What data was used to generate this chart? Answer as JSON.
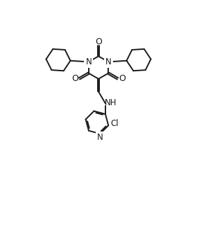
{
  "bg_color": "#ffffff",
  "line_color": "#1a1a1a",
  "line_width": 1.4,
  "font_size": 8.5,
  "figsize": [
    2.84,
    3.28
  ],
  "dpi": 100,
  "xlim": [
    0,
    10
  ],
  "ylim": [
    0,
    11.5
  ]
}
